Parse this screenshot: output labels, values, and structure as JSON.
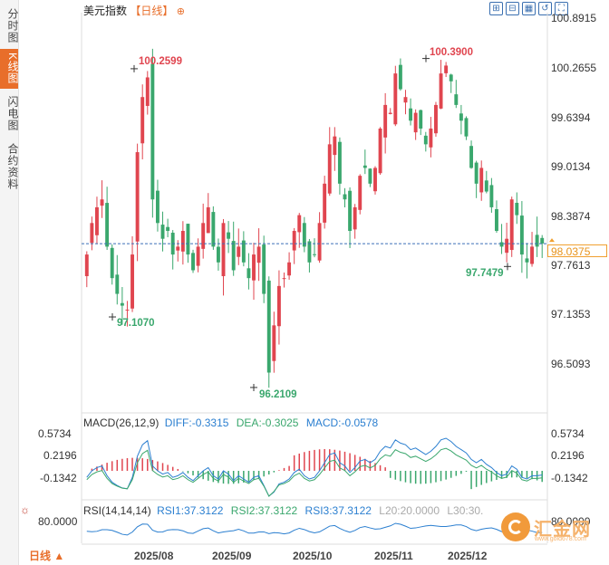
{
  "sidebar": {
    "tabs": [
      {
        "label": "分时图",
        "active": false
      },
      {
        "label": "K线图",
        "active": true
      },
      {
        "label": "闪电图",
        "active": false
      },
      {
        "label": "合约资料",
        "active": false
      }
    ]
  },
  "header": {
    "title": "美元指数",
    "period": "【日线】",
    "plus_icon": "plus-circle-icon"
  },
  "toolbar": {
    "icons": [
      "zoom-in-icon",
      "zoom-out-icon",
      "chart-type-icon",
      "refresh-icon",
      "fullscreen-icon"
    ]
  },
  "main_axis": {
    "ticks": [
      "100.8915",
      "100.2655",
      "99.6394",
      "99.0134",
      "98.3874",
      "97.7613",
      "97.1353",
      "96.5093"
    ]
  },
  "annotations": {
    "high1": "100.2599",
    "high2": "100.3900",
    "low1": "97.1070",
    "low2": "96.2109",
    "low3": "97.7479"
  },
  "current_price": "98.0375",
  "macd": {
    "title": "MACD(26,12,9)",
    "diff": "DIFF:-0.3315",
    "dea": "DEA:-0.3025",
    "macd": "MACD:-0.0578",
    "ticks": [
      "0.5734",
      "0.2196",
      "-0.1342"
    ]
  },
  "rsi": {
    "title": "RSI(14,14,14)",
    "rsi1": "RSI1:37.3122",
    "rsi2": "RSI2:37.3122",
    "rsi3": "RSI3:37.3122",
    "l20": "L20:20.0000",
    "l30": "L30:30.",
    "tick_left": "80.0000",
    "tick_right": "80.0000",
    "settings_icon": "sun-settings-icon"
  },
  "footer": {
    "period_button": "日线 ▲",
    "dates": [
      "2025/08",
      "2025/09",
      "2025/10",
      "2025/11",
      "2025/12"
    ]
  },
  "watermark": {
    "text": "汇金网",
    "url": "www.gold678.com"
  },
  "colors": {
    "up": "#e0454f",
    "down": "#3aa76d",
    "accent": "#e86e2a",
    "dif": "#2b7fd0",
    "dea": "#3aa76d"
  },
  "chart_data": {
    "type": "candlestick",
    "title": "美元指数",
    "period": "日线",
    "y_ticks": [
      100.8915,
      100.2655,
      99.6394,
      99.0134,
      98.3874,
      97.7613,
      97.1353,
      96.5093
    ],
    "ylim": [
      96.0,
      100.95
    ],
    "x_ticks": [
      "2025/08",
      "2025/09",
      "2025/10",
      "2025/11",
      "2025/12"
    ],
    "close_series": [
      97.9,
      98.3,
      98.5,
      98.6,
      98.0,
      97.6,
      97.4,
      97.25,
      97.2,
      97.9,
      99.2,
      99.9,
      100.15,
      98.6,
      98.3,
      98.1,
      98.2,
      97.9,
      98.0,
      98.2,
      97.9,
      97.7,
      98.0,
      98.3,
      98.5,
      98.0,
      97.8,
      98.3,
      98.1,
      97.7,
      98.0,
      97.8,
      97.6,
      97.9,
      98.0,
      97.4,
      96.4,
      97.0,
      97.5,
      97.6,
      97.8,
      98.2,
      98.4,
      98.0,
      97.8,
      97.9,
      98.3,
      98.8,
      99.3,
      99.4,
      98.8,
      98.6,
      98.2,
      98.5,
      98.9,
      99.0,
      98.8,
      99.0,
      99.5,
      99.8,
      99.7,
      100.2,
      100.0,
      99.9,
      99.6,
      99.7,
      99.5,
      99.3,
      99.5,
      99.8,
      100.2,
      100.3,
      100.1,
      99.8,
      99.6,
      99.4,
      99.0,
      98.8,
      99.0,
      98.7,
      98.5,
      98.2,
      98.0,
      98.1,
      98.6,
      98.4,
      97.9,
      97.8,
      98.0,
      98.0,
      98.04
    ],
    "annotations": {
      "high1": 100.2599,
      "high2": 100.39,
      "low1": 97.107,
      "low2": 96.2109,
      "low3": 97.7479
    },
    "current": 98.0375,
    "macd": {
      "params": "26,12,9",
      "diff": -0.3315,
      "dea": -0.3025,
      "macd": -0.0578,
      "ticks": [
        0.5734,
        0.2196,
        -0.1342
      ]
    },
    "rsi": {
      "params": "14,14,14",
      "rsi1": 37.3122,
      "rsi2": 37.3122,
      "rsi3": 37.3122,
      "tick": 80.0
    }
  }
}
